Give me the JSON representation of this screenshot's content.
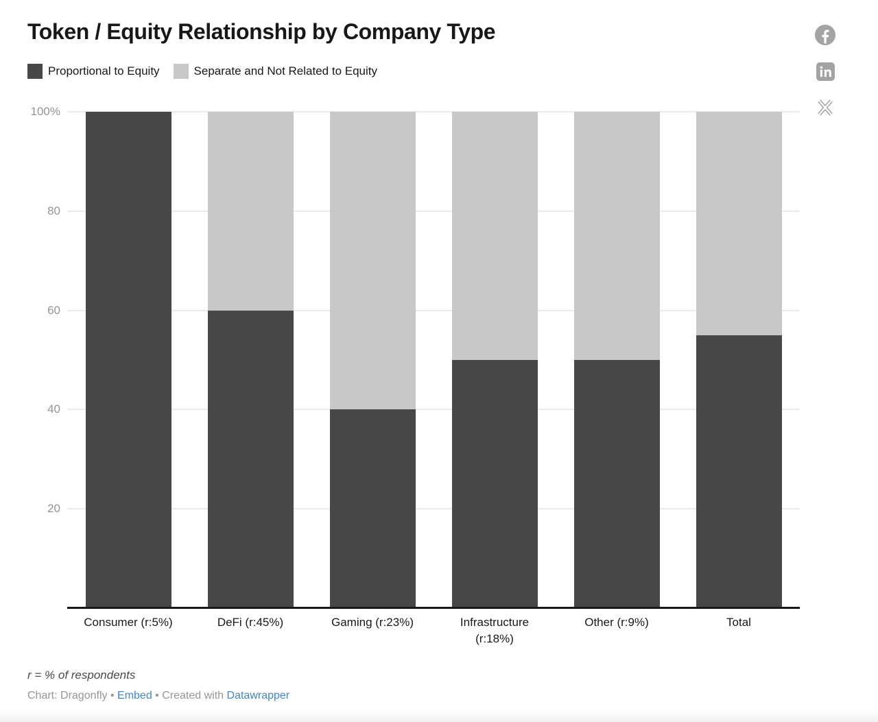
{
  "header": {
    "title": "Token / Equity Relationship by Company Type"
  },
  "legend": [
    {
      "label": "Proportional to Equity",
      "color": "#474747"
    },
    {
      "label": "Separate and Not Related to Equity",
      "color": "#c8c8c8"
    }
  ],
  "social": {
    "facebook": "facebook-share",
    "linkedin": "linkedin-share",
    "x": "x-share",
    "icon_color": "#a3a3a3"
  },
  "chart_data": {
    "type": "bar",
    "stacked": true,
    "orientation": "vertical",
    "categories": [
      "Consumer (r:5%)",
      "DeFi (r:45%)",
      "Gaming (r:23%)",
      "Infrastructure (r:18%)",
      "Other (r:9%)",
      "Total"
    ],
    "series": [
      {
        "name": "Proportional to Equity",
        "color": "#474747",
        "values": [
          100,
          60,
          40,
          50,
          50,
          55
        ]
      },
      {
        "name": "Separate and Not Related to Equity",
        "color": "#c8c8c8",
        "values": [
          0,
          40,
          60,
          50,
          50,
          45
        ]
      }
    ],
    "title": "Token / Equity Relationship by Company Type",
    "xlabel": "",
    "ylabel": "",
    "ylim": [
      0,
      100
    ],
    "y_ticks": [
      "100%",
      "80",
      "60",
      "40",
      "20"
    ],
    "y_tick_values": [
      100,
      80,
      60,
      40,
      20
    ],
    "grid": "horizontal",
    "legend_position": "top-left"
  },
  "footer": {
    "note": "r = % of respondents",
    "attribution_prefix": "Chart: Dragonfly",
    "separator1": "•",
    "embed_link": "Embed",
    "separator2": "•",
    "created_with": "Created with",
    "datawrapper_link": "Datawrapper",
    "link_color": "#4286c9"
  }
}
